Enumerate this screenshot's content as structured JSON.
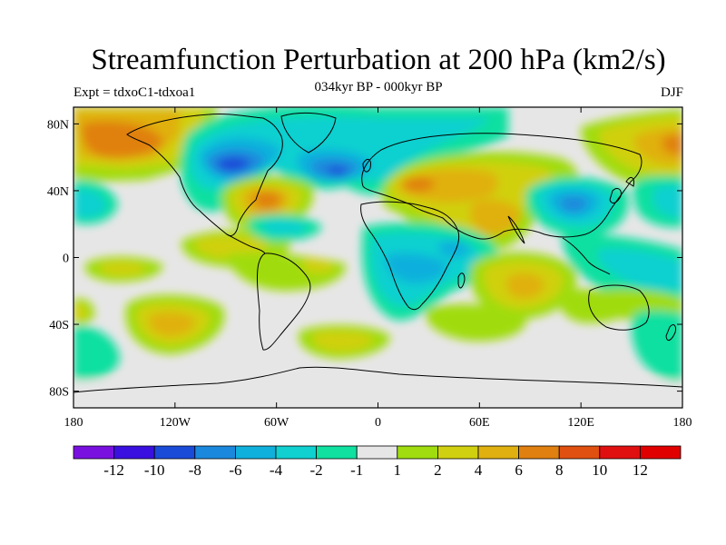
{
  "figure": {
    "title": "Streamfunction Perturbation at 200 hPa (km2/s)",
    "subtitle": "034kyr BP - 000kyr BP",
    "left_label": "Expt = tdxoC1-tdxoa1",
    "right_label": "DJF"
  },
  "map": {
    "projection": "cylindrical equidistant",
    "lon_range": [
      -180,
      180
    ],
    "lat_range": [
      -90,
      90
    ],
    "lat_ticks": [
      {
        "value": 80,
        "label": "80N"
      },
      {
        "value": 40,
        "label": "40N"
      },
      {
        "value": 0,
        "label": "0"
      },
      {
        "value": -40,
        "label": "40S"
      },
      {
        "value": -80,
        "label": "80S"
      }
    ],
    "lon_ticks": [
      {
        "value": -180,
        "label": "180"
      },
      {
        "value": -120,
        "label": "120W"
      },
      {
        "value": -60,
        "label": "60W"
      },
      {
        "value": 0,
        "label": "0"
      },
      {
        "value": 60,
        "label": "60E"
      },
      {
        "value": 120,
        "label": "120E"
      },
      {
        "value": 180,
        "label": "180"
      }
    ]
  },
  "chart_data": {
    "type": "heatmap",
    "title": "Streamfunction Perturbation at 200 hPa (km2/s)",
    "subtitle": "034kyr BP - 000kyr BP",
    "units": "km2/s",
    "season": "DJF",
    "colorbar": {
      "levels": [
        "-12",
        "-10",
        "-8",
        "-6",
        "-4",
        "-2",
        "-1",
        "1",
        "2",
        "4",
        "6",
        "8",
        "10",
        "12"
      ],
      "colors": [
        "#7a10e0",
        "#3a10e0",
        "#1a4ad8",
        "#1a88dc",
        "#10b0dc",
        "#10d0d0",
        "#10e0a0",
        "#e6e6e6",
        "#a0dc10",
        "#d0d010",
        "#e0b010",
        "#e08010",
        "#e05010",
        "#e01010",
        "#e00000"
      ]
    },
    "features": [
      {
        "name": "north-pacific-high",
        "lon": -150,
        "lat": 60,
        "value": 8
      },
      {
        "name": "canada-low",
        "lon": -105,
        "lat": 55,
        "value": -8
      },
      {
        "name": "north-atlantic-low",
        "lon": -22,
        "lat": 48,
        "value": -8
      },
      {
        "name": "western-atlantic-high",
        "lon": -60,
        "lat": 32,
        "value": 8
      },
      {
        "name": "eurasia-high",
        "lon": 20,
        "lat": 40,
        "value": 6
      },
      {
        "name": "south-asia-high",
        "lon": 70,
        "lat": 20,
        "value": 6
      },
      {
        "name": "east-asia-low",
        "lon": 115,
        "lat": 30,
        "value": -6
      },
      {
        "name": "north-pacific-low",
        "lon": -170,
        "lat": 30,
        "value": -4
      },
      {
        "name": "tropical-pacific-positive",
        "lon": -140,
        "lat": 5,
        "value": 2
      },
      {
        "name": "south-atlantic-low",
        "lon": 10,
        "lat": -25,
        "value": -4
      },
      {
        "name": "indian-ocean-high",
        "lon": 85,
        "lat": -20,
        "value": 4
      },
      {
        "name": "south-pacific-high",
        "lon": -125,
        "lat": -42,
        "value": 4
      },
      {
        "name": "southern-ocean-high",
        "lon": -35,
        "lat": -50,
        "value": 4
      },
      {
        "name": "south-indian-low",
        "lon": 160,
        "lat": -50,
        "value": -2
      },
      {
        "name": "far-south-pacific-low",
        "lon": -180,
        "lat": -55,
        "value": -2
      }
    ]
  }
}
